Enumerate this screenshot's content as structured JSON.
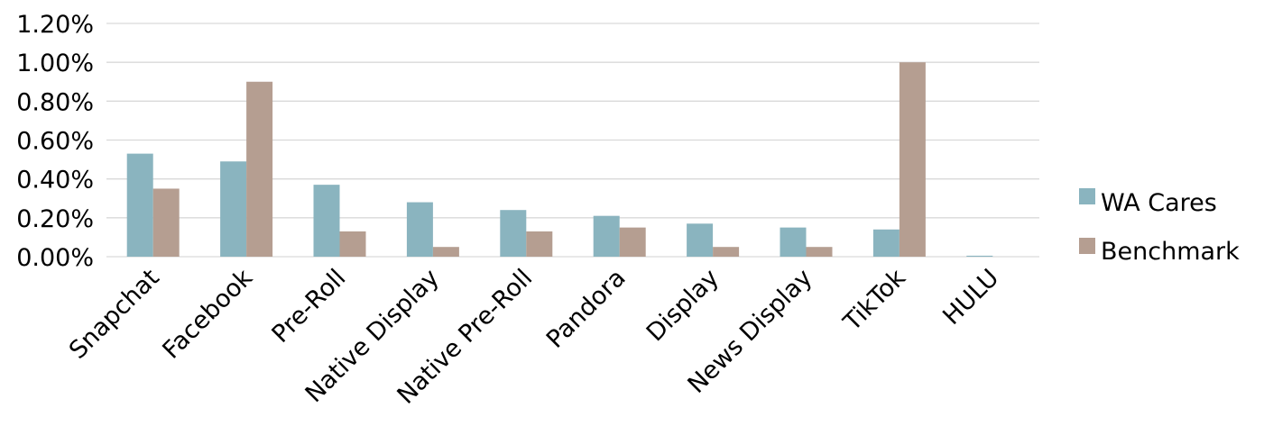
{
  "chart_data": {
    "type": "bar",
    "categories": [
      "Snapchat",
      "Facebook",
      "Pre-Roll",
      "Native Display",
      "Native Pre-Roll",
      "Pandora",
      "Display",
      "News Display",
      "TikTok",
      "HULU"
    ],
    "series": [
      {
        "name": "WA Cares",
        "color": "#8ab4bf",
        "values": [
          0.53,
          0.49,
          0.37,
          0.28,
          0.24,
          0.21,
          0.17,
          0.15,
          0.14,
          0.005
        ]
      },
      {
        "name": "Benchmark",
        "color": "#b59e91",
        "values": [
          0.35,
          0.9,
          0.13,
          0.05,
          0.13,
          0.15,
          0.05,
          0.05,
          1.0,
          0.0
        ]
      }
    ],
    "y_ticks": [
      "0.00%",
      "0.20%",
      "0.40%",
      "0.60%",
      "0.80%",
      "1.00%",
      "1.20%"
    ],
    "ylim": [
      0,
      1.2
    ],
    "y_unit": "%",
    "grid": true,
    "legend_position": "right",
    "title": "",
    "xlabel": "",
    "ylabel": ""
  }
}
